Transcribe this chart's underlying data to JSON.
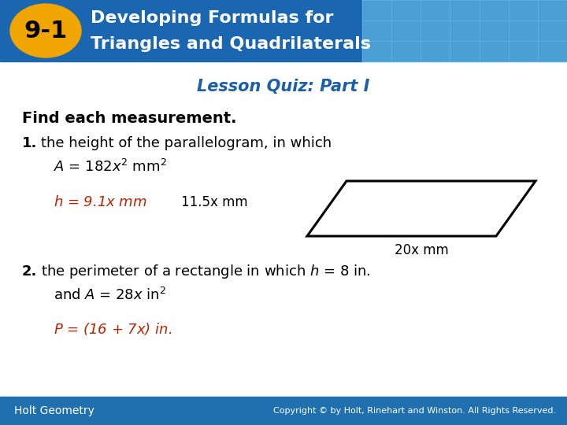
{
  "bg_color": "#ffffff",
  "badge_color": "#f0a500",
  "badge_text": "9-1",
  "header_left_color": "#1a66b0",
  "header_right_color": "#4a9fd5",
  "header_grid_color": "#5aaee0",
  "header_line1": "Developing Formulas for",
  "header_line2": "Triangles and Quadrilaterals",
  "header_text_color": "#ffffff",
  "subtitle": "Lesson Quiz: Part I",
  "subtitle_color": "#1a5fa8",
  "find_text": "Find each measurement.",
  "q1_answer_color": "#bb2200",
  "q2_answer_color": "#bb2200",
  "para_label_side": "11.5x mm",
  "para_label_bottom": "20x mm",
  "footer_bg": "#2070b0",
  "footer_text_left": "Holt Geometry",
  "footer_text_right": "Copyright © by Holt, Rinehart and Winston. All Rights Reserved.",
  "footer_color": "#ffffff"
}
